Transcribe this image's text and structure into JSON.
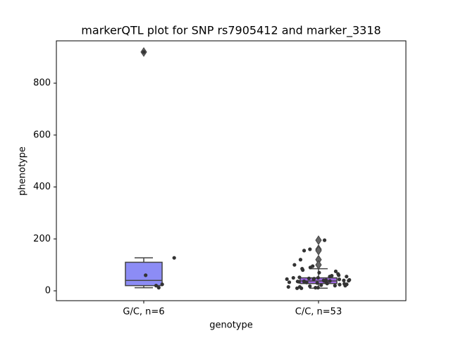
{
  "chart_data": {
    "type": "box",
    "title": "markerQTL plot for SNP rs7905412 and marker_3318",
    "xlabel": "genotype",
    "ylabel": "phenotype",
    "categories": [
      "G/C, n=6",
      "C/C, n=53"
    ],
    "ylim": [
      -38,
      963
    ],
    "yticks": [
      0,
      200,
      400,
      600,
      800
    ],
    "series": [
      {
        "color": "#8c8cf5",
        "whisker_low": 12,
        "q1": 20,
        "median": 40,
        "q3": 110,
        "whisker_high": 127,
        "outliers": [
          920
        ],
        "points": [
          920,
          127,
          60,
          25,
          20,
          12
        ]
      },
      {
        "color": "#a066e6",
        "whisker_low": 10,
        "q1": 28,
        "median": 38,
        "q3": 50,
        "whisker_high": 85,
        "outliers": [
          195,
          160,
          155,
          120,
          100
        ],
        "points": [
          195,
          160,
          155,
          120,
          100,
          95,
          90,
          85,
          80,
          75,
          70,
          65,
          60,
          58,
          55,
          55,
          52,
          50,
          50,
          48,
          47,
          45,
          45,
          44,
          42,
          41,
          40,
          40,
          39,
          38,
          38,
          37,
          36,
          35,
          34,
          33,
          32,
          30,
          30,
          28,
          27,
          25,
          24,
          22,
          20,
          20,
          18,
          15,
          15,
          12,
          12,
          10,
          10
        ]
      }
    ]
  }
}
